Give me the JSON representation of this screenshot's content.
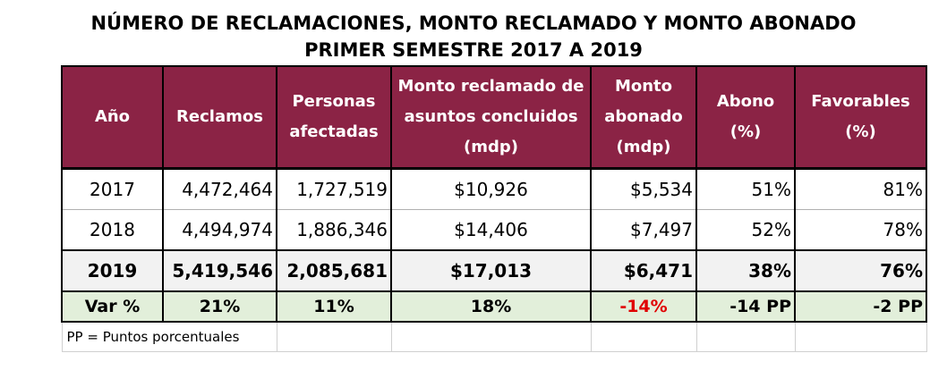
{
  "title": {
    "line1": "NÚMERO DE RECLAMACIONES, MONTO RECLAMADO Y MONTO ABONADO",
    "line2": "PRIMER SEMESTRE 2017 A 2019"
  },
  "table": {
    "headers": [
      "Año",
      "Reclamos",
      "Personas afectadas",
      "Monto reclamado de asuntos concluidos (mdp)",
      "Monto abonado (mdp)",
      "Abono (%)",
      "Favorables (%)"
    ],
    "rows": [
      [
        "2017",
        "4,472,464",
        "1,727,519",
        "$10,926",
        "$5,534",
        "51%",
        "81%"
      ],
      [
        "2018",
        "4,494,974",
        "1,886,346",
        "$14,406",
        "$7,497",
        "52%",
        "78%"
      ],
      [
        "2019",
        "5,419,546",
        "2,085,681",
        "$17,013",
        "$6,471",
        "38%",
        "76%"
      ]
    ],
    "variation": [
      "Var %",
      "21%",
      "11%",
      "18%",
      "-14%",
      "-14 PP",
      "-2 PP"
    ],
    "footnote": "PP = Puntos porcentuales"
  },
  "colors": {
    "header_bg": "#8b2345",
    "header_text": "#ffffff",
    "var_row_bg": "#e2efda",
    "negative_text": "#e00000"
  }
}
